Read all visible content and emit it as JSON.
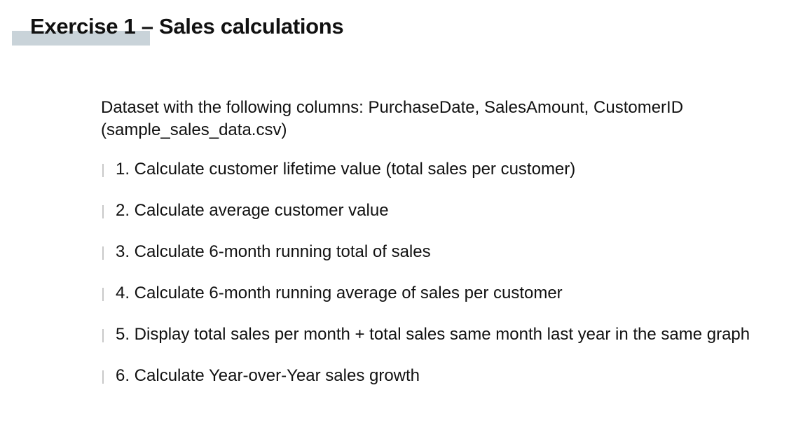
{
  "slide": {
    "title": "Exercise 1 – Sales calculations",
    "intro_line1": "Dataset with the following columns: PurchaseDate, SalesAmount, CustomerID",
    "intro_line2": "(sample_sales_data.csv)",
    "tasks": [
      "1. Calculate customer lifetime value (total sales per customer)",
      "2. Calculate average customer value",
      "3. Calculate 6-month running total of sales",
      "4. Calculate 6-month running average of sales per customer",
      "5. Display total sales per month + total sales same month last year in the same graph",
      "6. Calculate Year-over-Year sales growth"
    ]
  },
  "colors": {
    "title_accent": "#c9d3d9",
    "bullet_bar": "#c8c8c8",
    "text": "#111111"
  }
}
